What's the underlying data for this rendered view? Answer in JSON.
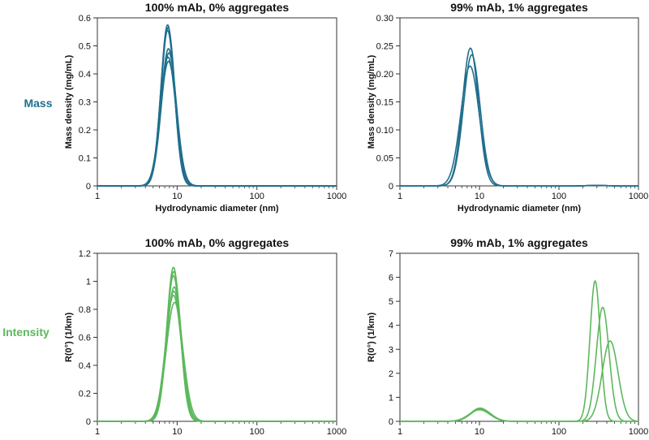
{
  "row_labels": [
    {
      "text": "Mass",
      "color": "#1f6e8c"
    },
    {
      "text": "Intensity",
      "color": "#5cb85c"
    }
  ],
  "chart_data": [
    {
      "type": "line",
      "title": "100% mAb, 0% aggregates",
      "xlabel": "Hydrodynamic diameter (nm)",
      "ylabel": "Mass density (mg/mL)",
      "xscale": "log",
      "xlim": [
        1,
        1000
      ],
      "ylim": [
        0,
        0.6
      ],
      "xticks": [
        1,
        10,
        100,
        1000
      ],
      "xtick_labels": [
        "1",
        "10",
        "100",
        "1000"
      ],
      "yticks": [
        0,
        0.1,
        0.2,
        0.3,
        0.4,
        0.5,
        0.6
      ],
      "ytick_labels": [
        "0",
        "0.1",
        "0.2",
        "0.3",
        "0.4",
        "0.5",
        "0.6"
      ],
      "color": "#1f6e8c",
      "series": [
        {
          "peaks": [
            {
              "center": 7.6,
              "height": 0.575,
              "width": 0.085
            }
          ]
        },
        {
          "peaks": [
            {
              "center": 7.7,
              "height": 0.565,
              "width": 0.086
            }
          ]
        },
        {
          "peaks": [
            {
              "center": 7.6,
              "height": 0.555,
              "width": 0.087
            }
          ]
        },
        {
          "peaks": [
            {
              "center": 7.8,
              "height": 0.49,
              "width": 0.093
            }
          ]
        },
        {
          "peaks": [
            {
              "center": 7.9,
              "height": 0.475,
              "width": 0.095
            }
          ]
        },
        {
          "peaks": [
            {
              "center": 7.7,
              "height": 0.46,
              "width": 0.097
            }
          ]
        },
        {
          "peaks": [
            {
              "center": 7.8,
              "height": 0.445,
              "width": 0.099
            }
          ]
        }
      ]
    },
    {
      "type": "line",
      "title": "99% mAb, 1% aggregates",
      "xlabel": "Hydrodynamic diameter (nm)",
      "ylabel": "Mass density (mg/mL)",
      "xscale": "log",
      "xlim": [
        1,
        1000
      ],
      "ylim": [
        0,
        0.3
      ],
      "xticks": [
        1,
        10,
        100,
        1000
      ],
      "xtick_labels": [
        "1",
        "10",
        "100",
        "1000"
      ],
      "yticks": [
        0,
        0.05,
        0.1,
        0.15,
        0.2,
        0.25,
        0.3
      ],
      "ytick_labels": [
        "0",
        "0.05",
        "0.10",
        "0.15",
        "0.20",
        "0.25",
        "0.30"
      ],
      "color": "#1f6e8c",
      "series": [
        {
          "peaks": [
            {
              "center": 7.7,
              "height": 0.246,
              "width": 0.1
            },
            {
              "center": 300,
              "height": 0.001,
              "width": 0.1
            }
          ]
        },
        {
          "peaks": [
            {
              "center": 8.0,
              "height": 0.234,
              "width": 0.105
            },
            {
              "center": 300,
              "height": 0.001,
              "width": 0.1
            }
          ]
        },
        {
          "peaks": [
            {
              "center": 7.6,
              "height": 0.214,
              "width": 0.115
            },
            {
              "center": 300,
              "height": 0.001,
              "width": 0.1
            }
          ]
        }
      ]
    },
    {
      "type": "line",
      "title": "100% mAb, 0% aggregates",
      "xlabel": "",
      "ylabel": "R(0°) (1/km)",
      "xscale": "log",
      "xlim": [
        1,
        1000
      ],
      "ylim": [
        0,
        1.2
      ],
      "xticks": [
        1,
        10,
        100,
        1000
      ],
      "xtick_labels": [
        "1",
        "10",
        "100",
        "1000"
      ],
      "yticks": [
        0,
        0.2,
        0.4,
        0.6,
        0.8,
        1.0,
        1.2
      ],
      "ytick_labels": [
        "0",
        "0.2",
        "0.4",
        "0.6",
        "0.8",
        "1",
        "1.2"
      ],
      "color": "#5cb85c",
      "series": [
        {
          "peaks": [
            {
              "center": 9.0,
              "height": 1.1,
              "width": 0.085
            }
          ]
        },
        {
          "peaks": [
            {
              "center": 9.1,
              "height": 1.07,
              "width": 0.087
            }
          ]
        },
        {
          "peaks": [
            {
              "center": 9.0,
              "height": 1.04,
              "width": 0.089
            }
          ]
        },
        {
          "peaks": [
            {
              "center": 9.2,
              "height": 0.96,
              "width": 0.095
            }
          ]
        },
        {
          "peaks": [
            {
              "center": 9.1,
              "height": 0.93,
              "width": 0.097
            }
          ]
        },
        {
          "peaks": [
            {
              "center": 9.0,
              "height": 0.9,
              "width": 0.1
            }
          ]
        },
        {
          "peaks": [
            {
              "center": 9.3,
              "height": 0.85,
              "width": 0.104
            }
          ]
        }
      ]
    },
    {
      "type": "line",
      "title": "99% mAb, 1% aggregates",
      "xlabel": "",
      "ylabel": "R(0°) (1/km)",
      "xscale": "log",
      "xlim": [
        1,
        1000
      ],
      "ylim": [
        0,
        7
      ],
      "xticks": [
        1,
        10,
        100,
        1000
      ],
      "xtick_labels": [
        "1",
        "10",
        "100",
        "1000"
      ],
      "yticks": [
        0,
        1,
        2,
        3,
        4,
        5,
        6,
        7
      ],
      "ytick_labels": [
        "0",
        "1",
        "2",
        "3",
        "4",
        "5",
        "6",
        "7"
      ],
      "color": "#5cb85c",
      "series": [
        {
          "peaks": [
            {
              "center": 10.2,
              "height": 0.55,
              "width": 0.12
            },
            {
              "center": 285,
              "height": 5.85,
              "width": 0.065
            }
          ]
        },
        {
          "peaks": [
            {
              "center": 10.4,
              "height": 0.52,
              "width": 0.125
            },
            {
              "center": 355,
              "height": 4.75,
              "width": 0.08
            }
          ]
        },
        {
          "peaks": [
            {
              "center": 10.0,
              "height": 0.48,
              "width": 0.13
            },
            {
              "center": 440,
              "height": 3.35,
              "width": 0.1
            }
          ]
        }
      ]
    }
  ]
}
